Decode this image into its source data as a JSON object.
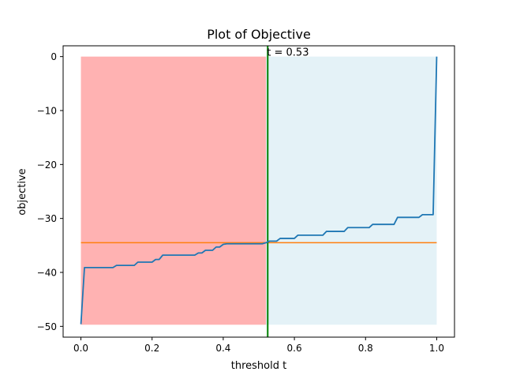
{
  "chart_data": {
    "type": "line",
    "title": "Plot of Objective",
    "xlabel": "threshold t",
    "ylabel": "objective",
    "xlim": [
      -0.05,
      1.05
    ],
    "ylim": [
      -52,
      2
    ],
    "xticks": [
      0.0,
      0.2,
      0.4,
      0.6,
      0.8,
      1.0
    ],
    "xtick_labels": [
      "0.0",
      "0.2",
      "0.4",
      "0.6",
      "0.8",
      "1.0"
    ],
    "yticks": [
      0,
      -10,
      -20,
      -30,
      -40,
      -50
    ],
    "ytick_labels": [
      "0",
      "−10",
      "−20",
      "−30",
      "−40",
      "−50"
    ],
    "grid": false,
    "legend": "none",
    "regions": [
      {
        "x0": 0.0,
        "x1": 0.52,
        "y0": -49.7,
        "y1": 0,
        "color": "#ff0000",
        "alpha": 0.3
      },
      {
        "x0": 0.52,
        "x1": 1.0,
        "y0": -49.7,
        "y1": 0,
        "color": "#add8e6",
        "alpha": 0.33
      }
    ],
    "hline": {
      "y": -34.5,
      "color": "#ff7f0e"
    },
    "vline": {
      "x": 0.525,
      "color": "#008000"
    },
    "annotation": {
      "text": "t = 0.53",
      "x": 0.525,
      "y": 0
    },
    "series": [
      {
        "color": "#1f77b4",
        "x": [
          0.0,
          0.01,
          0.02,
          0.03,
          0.04,
          0.05,
          0.06,
          0.07,
          0.08,
          0.09,
          0.1,
          0.11,
          0.12,
          0.13,
          0.14,
          0.15,
          0.16,
          0.17,
          0.18,
          0.19,
          0.2,
          0.21,
          0.22,
          0.23,
          0.24,
          0.25,
          0.26,
          0.27,
          0.28,
          0.29,
          0.3,
          0.31,
          0.32,
          0.33,
          0.34,
          0.35,
          0.36,
          0.37,
          0.38,
          0.39,
          0.4,
          0.41,
          0.42,
          0.43,
          0.44,
          0.45,
          0.46,
          0.47,
          0.48,
          0.49,
          0.5,
          0.51,
          0.52,
          0.53,
          0.54,
          0.55,
          0.56,
          0.57,
          0.58,
          0.59,
          0.6,
          0.61,
          0.62,
          0.63,
          0.64,
          0.65,
          0.66,
          0.67,
          0.68,
          0.69,
          0.7,
          0.71,
          0.72,
          0.73,
          0.74,
          0.75,
          0.76,
          0.77,
          0.78,
          0.79,
          0.8,
          0.81,
          0.82,
          0.83,
          0.84,
          0.85,
          0.86,
          0.87,
          0.88,
          0.89,
          0.9,
          0.91,
          0.92,
          0.93,
          0.94,
          0.95,
          0.96,
          0.97,
          0.98,
          0.99,
          1.0
        ],
        "y": [
          -49.6,
          -39.1,
          -39.1,
          -39.1,
          -39.1,
          -39.1,
          -39.1,
          -39.1,
          -39.1,
          -39.1,
          -38.7,
          -38.7,
          -38.7,
          -38.7,
          -38.7,
          -38.7,
          -38.1,
          -38.1,
          -38.1,
          -38.1,
          -38.1,
          -37.6,
          -37.6,
          -36.8,
          -36.8,
          -36.8,
          -36.8,
          -36.8,
          -36.8,
          -36.8,
          -36.8,
          -36.8,
          -36.8,
          -36.4,
          -36.4,
          -35.9,
          -35.9,
          -35.9,
          -35.3,
          -35.3,
          -34.8,
          -34.7,
          -34.7,
          -34.7,
          -34.7,
          -34.7,
          -34.7,
          -34.7,
          -34.7,
          -34.7,
          -34.7,
          -34.7,
          -34.5,
          -34.2,
          -34.2,
          -34.2,
          -33.7,
          -33.7,
          -33.7,
          -33.7,
          -33.7,
          -33.1,
          -33.1,
          -33.1,
          -33.1,
          -33.1,
          -33.1,
          -33.1,
          -33.1,
          -32.4,
          -32.4,
          -32.4,
          -32.4,
          -32.4,
          -32.4,
          -31.7,
          -31.7,
          -31.7,
          -31.7,
          -31.7,
          -31.7,
          -31.7,
          -31.1,
          -31.1,
          -31.1,
          -31.1,
          -31.1,
          -31.1,
          -31.1,
          -29.8,
          -29.8,
          -29.8,
          -29.8,
          -29.8,
          -29.8,
          -29.8,
          -29.3,
          -29.3,
          -29.3,
          -29.3,
          0.0
        ]
      }
    ]
  }
}
